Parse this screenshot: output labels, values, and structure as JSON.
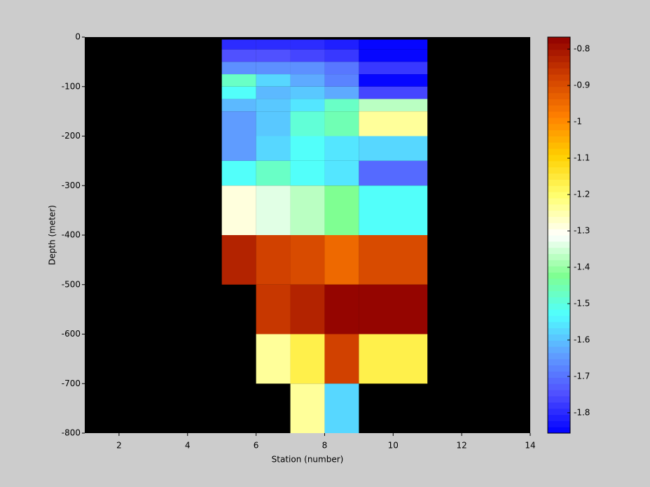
{
  "chart_data": {
    "type": "heatmap",
    "xlabel": "Station (number)",
    "ylabel": "Depth (meter)",
    "xlim": [
      1,
      14
    ],
    "xticks": [
      2,
      4,
      6,
      8,
      10,
      12,
      14
    ],
    "ylim": [
      -800,
      0
    ],
    "yticks": [
      0,
      -100,
      -200,
      -300,
      -400,
      -500,
      -600,
      -700,
      -800
    ],
    "x_edges": [
      5,
      6,
      7,
      8,
      9,
      11
    ],
    "y_edges": [
      -5,
      -25,
      -50,
      -75,
      -100,
      -125,
      -150,
      -200,
      -250,
      -300,
      -400,
      -500,
      -600,
      -700,
      -800
    ],
    "values": [
      [
        -1.8,
        -1.8,
        -1.8,
        -1.81,
        -1.84
      ],
      [
        -1.74,
        -1.74,
        -1.76,
        -1.78,
        -1.84
      ],
      [
        -1.66,
        -1.66,
        -1.66,
        -1.7,
        -1.78
      ],
      [
        -1.48,
        -1.58,
        -1.63,
        -1.68,
        -1.85
      ],
      [
        -1.52,
        -1.61,
        -1.6,
        -1.63,
        -1.77
      ],
      [
        -1.61,
        -1.6,
        -1.56,
        -1.48,
        -1.37
      ],
      [
        -1.64,
        -1.59,
        -1.49,
        -1.45,
        -1.24
      ],
      [
        -1.64,
        -1.57,
        -1.53,
        -1.55,
        -1.57
      ],
      [
        -1.52,
        -1.47,
        -1.52,
        -1.56,
        -1.71
      ],
      [
        -1.29,
        -1.33,
        -1.37,
        -1.43,
        -1.52
      ],
      [
        -0.82,
        -0.88,
        -0.9,
        -0.95,
        -0.9
      ],
      [
        null,
        -0.86,
        -0.82,
        -0.77,
        -0.77
      ],
      [
        null,
        -1.24,
        -1.17,
        -0.88,
        -1.17
      ],
      [
        null,
        null,
        -1.24,
        -1.58,
        null
      ]
    ],
    "clim": [
      -1.856,
      -0.767
    ],
    "colorbar_ticks": [
      -0.8,
      -0.9,
      -1,
      -1.1,
      -1.2,
      -1.3,
      -1.4,
      -1.5,
      -1.6,
      -1.7,
      -1.8
    ],
    "colormap": [
      "#0000ff",
      "#5050ff",
      "#60a0ff",
      "#50ffff",
      "#80ff90",
      "#ffffff",
      "#ffff70",
      "#ffd000",
      "#ff8000",
      "#d04000",
      "#900000"
    ],
    "colormap_levels": 64,
    "background": "#000000"
  }
}
